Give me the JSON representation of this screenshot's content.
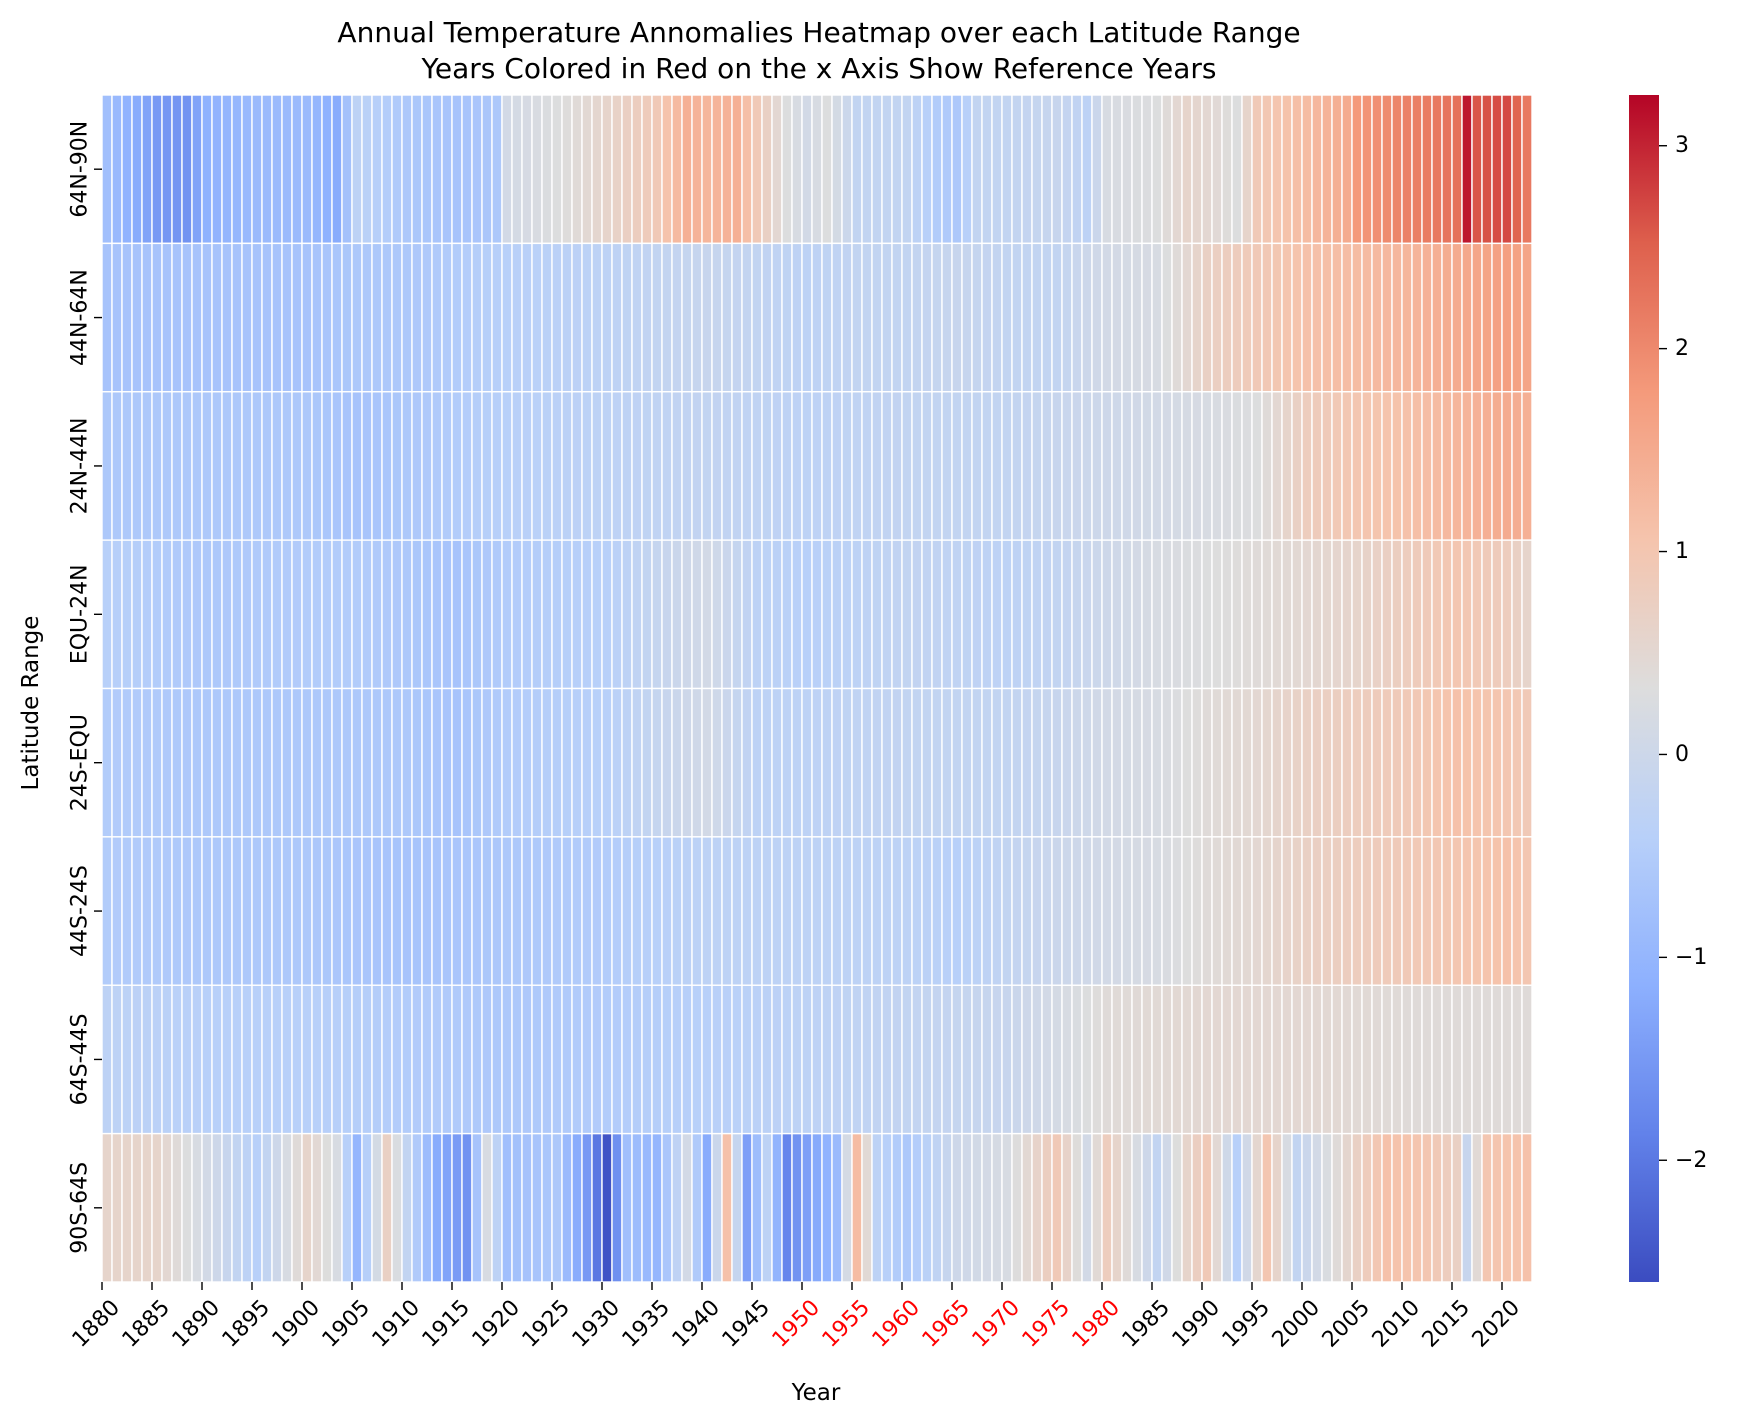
{
  "chart_data": {
    "type": "heatmap",
    "title": "Annual Temperature Annomalies Heatmap over each Latitude Range",
    "subtitle": "Years Colored in Red on the x Axis Show Reference Years",
    "xlabel": "Year",
    "ylabel": "Latitude Range",
    "x_years": {
      "start": 1880,
      "end": 2022
    },
    "x_tick_labels": [
      "1880",
      "1885",
      "1890",
      "1895",
      "1900",
      "1905",
      "1910",
      "1915",
      "1920",
      "1925",
      "1930",
      "1935",
      "1940",
      "1945",
      "1950",
      "1955",
      "1960",
      "1965",
      "1970",
      "1975",
      "1980",
      "1985",
      "1990",
      "1995",
      "2000",
      "2005",
      "2010",
      "2015",
      "2020"
    ],
    "reference_years": [
      "1950",
      "1955",
      "1960",
      "1965",
      "1970",
      "1975",
      "1980"
    ],
    "reference_color": "#ff0000",
    "rows": [
      "64N-90N",
      "44N-64N",
      "24N-44N",
      "EQU-24N",
      "24S-EQU",
      "44S-24S",
      "64S-44S",
      "90S-64S"
    ],
    "colormap": "coolwarm",
    "vmin": -2.6,
    "vmax": 3.25,
    "colorbar_ticks": [
      "3",
      "2",
      "1",
      "0",
      "−1",
      "−2"
    ],
    "colorbar_tick_values": [
      3,
      2,
      1,
      0,
      -1,
      -2
    ],
    "grid_line_color": "#ffffff",
    "anchors": [
      [
        [
          1880,
          -0.8
        ],
        [
          1883,
          -1.2
        ],
        [
          1885,
          -1.5
        ],
        [
          1888,
          -1.6
        ],
        [
          1890,
          -1.1
        ],
        [
          1895,
          -0.9
        ],
        [
          1900,
          -0.9
        ],
        [
          1903,
          -1.2
        ],
        [
          1905,
          -0.3
        ],
        [
          1910,
          -0.6
        ],
        [
          1915,
          -0.7
        ],
        [
          1919,
          -0.6
        ],
        [
          1920,
          0.1
        ],
        [
          1925,
          0.3
        ],
        [
          1930,
          0.6
        ],
        [
          1935,
          0.9
        ],
        [
          1938,
          1.4
        ],
        [
          1940,
          1.3
        ],
        [
          1943,
          1.4
        ],
        [
          1945,
          0.9
        ],
        [
          1948,
          0.3
        ],
        [
          1950,
          0.1
        ],
        [
          1952,
          0.3
        ],
        [
          1955,
          -0.2
        ],
        [
          1960,
          -0.2
        ],
        [
          1963,
          -0.5
        ],
        [
          1965,
          -0.6
        ],
        [
          1967,
          -0.2
        ],
        [
          1970,
          -0.2
        ],
        [
          1975,
          -0.1
        ],
        [
          1978,
          -0.3
        ],
        [
          1980,
          0.2
        ],
        [
          1985,
          0.3
        ],
        [
          1988,
          0.6
        ],
        [
          1990,
          0.5
        ],
        [
          1993,
          0.3
        ],
        [
          1995,
          0.9
        ],
        [
          2000,
          1.2
        ],
        [
          2004,
          1.5
        ],
        [
          2005,
          1.8
        ],
        [
          2010,
          2.1
        ],
        [
          2013,
          2.2
        ],
        [
          2015,
          2.3
        ],
        [
          2016,
          3.1
        ],
        [
          2017,
          2.6
        ],
        [
          2020,
          2.7
        ],
        [
          2022,
          2.2
        ]
      ],
      [
        [
          1880,
          -0.7
        ],
        [
          1900,
          -0.7
        ],
        [
          1905,
          -0.6
        ],
        [
          1910,
          -0.6
        ],
        [
          1920,
          -0.4
        ],
        [
          1930,
          -0.3
        ],
        [
          1940,
          -0.1
        ],
        [
          1945,
          -0.2
        ],
        [
          1950,
          -0.3
        ],
        [
          1955,
          -0.2
        ],
        [
          1960,
          -0.2
        ],
        [
          1965,
          -0.1
        ],
        [
          1970,
          -0.2
        ],
        [
          1975,
          -0.2
        ],
        [
          1980,
          0.1
        ],
        [
          1985,
          0.2
        ],
        [
          1990,
          0.7
        ],
        [
          1995,
          0.9
        ],
        [
          2000,
          1.1
        ],
        [
          2005,
          1.2
        ],
        [
          2010,
          1.3
        ],
        [
          2015,
          1.5
        ],
        [
          2020,
          1.7
        ],
        [
          2022,
          1.6
        ]
      ],
      [
        [
          1880,
          -0.6
        ],
        [
          1900,
          -0.6
        ],
        [
          1905,
          -0.7
        ],
        [
          1910,
          -0.6
        ],
        [
          1920,
          -0.4
        ],
        [
          1930,
          -0.3
        ],
        [
          1940,
          -0.2
        ],
        [
          1950,
          -0.3
        ],
        [
          1960,
          -0.2
        ],
        [
          1970,
          -0.2
        ],
        [
          1980,
          0.0
        ],
        [
          1985,
          0.1
        ],
        [
          1990,
          0.2
        ],
        [
          1995,
          0.3
        ],
        [
          2000,
          0.8
        ],
        [
          2005,
          1.0
        ],
        [
          2010,
          1.1
        ],
        [
          2015,
          1.3
        ],
        [
          2020,
          1.5
        ],
        [
          2022,
          1.4
        ]
      ],
      [
        [
          1880,
          -0.4
        ],
        [
          1890,
          -0.6
        ],
        [
          1900,
          -0.5
        ],
        [
          1905,
          -0.5
        ],
        [
          1910,
          -0.6
        ],
        [
          1915,
          -0.7
        ],
        [
          1920,
          -0.5
        ],
        [
          1930,
          -0.4
        ],
        [
          1940,
          0.1
        ],
        [
          1945,
          -0.3
        ],
        [
          1950,
          -0.4
        ],
        [
          1960,
          -0.2
        ],
        [
          1970,
          -0.3
        ],
        [
          1975,
          -0.2
        ],
        [
          1980,
          0.0
        ],
        [
          1985,
          0.2
        ],
        [
          1990,
          0.3
        ],
        [
          1995,
          0.4
        ],
        [
          2000,
          0.5
        ],
        [
          2005,
          0.6
        ],
        [
          2010,
          0.8
        ],
        [
          2015,
          1.0
        ],
        [
          2020,
          0.8
        ],
        [
          2022,
          0.6
        ]
      ],
      [
        [
          1880,
          -0.5
        ],
        [
          1890,
          -0.6
        ],
        [
          1900,
          -0.6
        ],
        [
          1910,
          -0.6
        ],
        [
          1915,
          -0.7
        ],
        [
          1920,
          -0.5
        ],
        [
          1930,
          -0.4
        ],
        [
          1940,
          0.1
        ],
        [
          1945,
          -0.3
        ],
        [
          1950,
          -0.3
        ],
        [
          1960,
          -0.2
        ],
        [
          1970,
          -0.2
        ],
        [
          1975,
          -0.1
        ],
        [
          1980,
          0.1
        ],
        [
          1985,
          0.2
        ],
        [
          1990,
          0.4
        ],
        [
          1995,
          0.5
        ],
        [
          2000,
          0.7
        ],
        [
          2005,
          0.8
        ],
        [
          2010,
          0.9
        ],
        [
          2015,
          1.1
        ],
        [
          2020,
          1.0
        ],
        [
          2022,
          0.9
        ]
      ],
      [
        [
          1880,
          -0.5
        ],
        [
          1890,
          -0.6
        ],
        [
          1900,
          -0.6
        ],
        [
          1910,
          -0.7
        ],
        [
          1920,
          -0.6
        ],
        [
          1930,
          -0.5
        ],
        [
          1940,
          -0.3
        ],
        [
          1950,
          -0.3
        ],
        [
          1960,
          -0.3
        ],
        [
          1965,
          -0.4
        ],
        [
          1970,
          -0.2
        ],
        [
          1980,
          0.1
        ],
        [
          1985,
          0.2
        ],
        [
          1990,
          0.4
        ],
        [
          1995,
          0.5
        ],
        [
          2000,
          0.7
        ],
        [
          2005,
          0.8
        ],
        [
          2010,
          0.9
        ],
        [
          2015,
          1.0
        ],
        [
          2020,
          1.1
        ],
        [
          2022,
          1.0
        ]
      ],
      [
        [
          1880,
          -0.3
        ],
        [
          1890,
          -0.4
        ],
        [
          1900,
          -0.4
        ],
        [
          1910,
          -0.5
        ],
        [
          1920,
          -0.6
        ],
        [
          1930,
          -0.5
        ],
        [
          1940,
          -0.4
        ],
        [
          1950,
          -0.3
        ],
        [
          1960,
          -0.2
        ],
        [
          1970,
          -0.1
        ],
        [
          1980,
          0.4
        ],
        [
          1990,
          0.5
        ],
        [
          2000,
          0.5
        ],
        [
          2010,
          0.4
        ],
        [
          2020,
          0.4
        ],
        [
          2022,
          0.4
        ]
      ],
      [
        [
          1880,
          0.6
        ],
        [
          1885,
          0.6
        ],
        [
          1890,
          0.1
        ],
        [
          1895,
          -0.4
        ],
        [
          1900,
          0.6
        ],
        [
          1903,
          0.2
        ],
        [
          1905,
          -1.0
        ],
        [
          1908,
          0.7
        ],
        [
          1910,
          -0.2
        ],
        [
          1913,
          -1.2
        ],
        [
          1916,
          -1.6
        ],
        [
          1918,
          0.2
        ],
        [
          1920,
          -0.8
        ],
        [
          1925,
          -0.6
        ],
        [
          1928,
          -1.5
        ],
        [
          1930,
          -2.5
        ],
        [
          1932,
          -0.8
        ],
        [
          1935,
          -1.0
        ],
        [
          1938,
          0.1
        ],
        [
          1940,
          -1.2
        ],
        [
          1942,
          1.1
        ],
        [
          1944,
          -1.4
        ],
        [
          1946,
          -0.3
        ],
        [
          1948,
          -1.8
        ],
        [
          1950,
          -1.4
        ],
        [
          1953,
          -0.9
        ],
        [
          1955,
          1.2
        ],
        [
          1957,
          -0.3
        ],
        [
          1960,
          -0.6
        ],
        [
          1965,
          0.0
        ],
        [
          1970,
          0.2
        ],
        [
          1975,
          0.9
        ],
        [
          1978,
          0.1
        ],
        [
          1980,
          0.8
        ],
        [
          1985,
          -0.2
        ],
        [
          1988,
          0.6
        ],
        [
          1990,
          0.9
        ],
        [
          1993,
          -0.4
        ],
        [
          1996,
          1.0
        ],
        [
          1999,
          -0.2
        ],
        [
          2005,
          0.7
        ],
        [
          2008,
          1.1
        ],
        [
          2012,
          1.0
        ],
        [
          2015,
          0.7
        ],
        [
          2016,
          -0.1
        ],
        [
          2018,
          1.0
        ],
        [
          2022,
          1.1
        ]
      ]
    ]
  }
}
